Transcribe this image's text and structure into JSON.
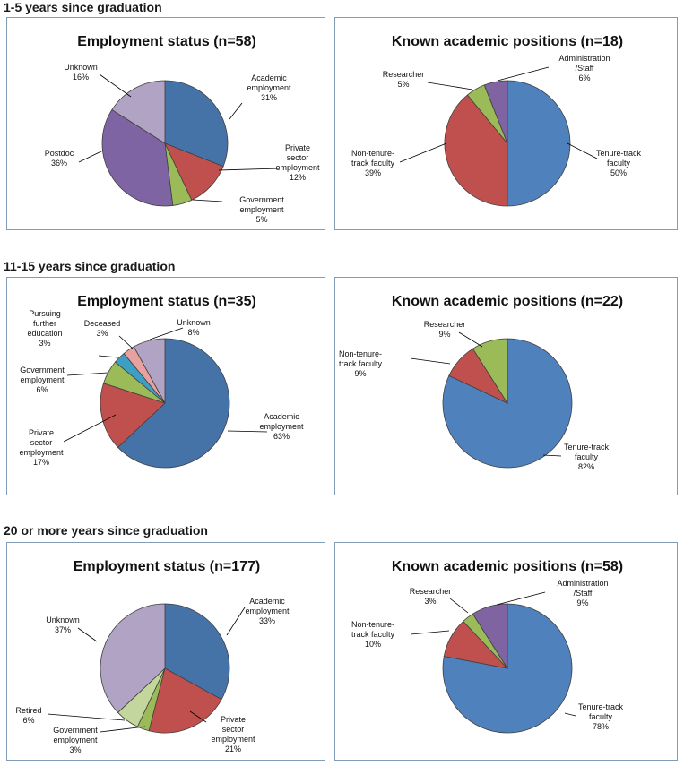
{
  "sections": [
    {
      "title": "1-5 years since graduation"
    },
    {
      "title": "11-15 years since graduation"
    },
    {
      "title": "20 or more years since graduation"
    }
  ],
  "colors": {
    "academic": "#4572a7",
    "private": "#c0504d",
    "government": "#9bbb59",
    "postdoc": "#7e64a2",
    "unknown": "#b0a3c4",
    "further_ed": "#3f9fc3",
    "deceased": "#e8a1a0",
    "retired": "#c3d69b",
    "tenure": "#4f81bd",
    "nontenure": "#c0504d",
    "researcher": "#9bbb59",
    "admin": "#8064a2",
    "panel_border": "#7f9db9",
    "leader": "#000000"
  },
  "chart_data": [
    {
      "type": "pie",
      "title": "Employment status (n=58)",
      "slices": [
        {
          "lines": [
            "Academic",
            "employment",
            "31%"
          ],
          "value": 31,
          "color": "#4572a7"
        },
        {
          "lines": [
            "Private",
            "sector",
            "employment",
            "12%"
          ],
          "value": 12,
          "color": "#c0504d"
        },
        {
          "lines": [
            "Government",
            "employment",
            "5%"
          ],
          "value": 5,
          "color": "#9bbb59"
        },
        {
          "lines": [
            "Postdoc",
            "36%"
          ],
          "value": 36,
          "color": "#7e64a2"
        },
        {
          "lines": [
            "Unknown",
            "16%"
          ],
          "value": 16,
          "color": "#b0a3c4"
        }
      ]
    },
    {
      "type": "pie",
      "title": "Known academic positions (n=18)",
      "slices": [
        {
          "lines": [
            "Tenure-track",
            "faculty",
            "50%"
          ],
          "value": 50,
          "color": "#4f81bd"
        },
        {
          "lines": [
            "Non-tenure-",
            "track faculty",
            "39%"
          ],
          "value": 39,
          "color": "#c0504d"
        },
        {
          "lines": [
            "Researcher",
            "5%"
          ],
          "value": 5,
          "color": "#9bbb59"
        },
        {
          "lines": [
            "Administration",
            "/Staff",
            "6%"
          ],
          "value": 6,
          "color": "#8064a2"
        }
      ]
    },
    {
      "type": "pie",
      "title": "Employment status (n=35)",
      "slices": [
        {
          "lines": [
            "Academic",
            "employment",
            "63%"
          ],
          "value": 63,
          "color": "#4572a7"
        },
        {
          "lines": [
            "Private",
            "sector",
            "employment",
            "17%"
          ],
          "value": 17,
          "color": "#c0504d"
        },
        {
          "lines": [
            "Government",
            "employment",
            "6%"
          ],
          "value": 6,
          "color": "#9bbb59"
        },
        {
          "lines": [
            "Pursuing",
            "further",
            "education",
            "3%"
          ],
          "value": 3,
          "color": "#3f9fc3"
        },
        {
          "lines": [
            "Deceased",
            "3%"
          ],
          "value": 3,
          "color": "#e8a1a0"
        },
        {
          "lines": [
            "Unknown",
            "8%"
          ],
          "value": 8,
          "color": "#b0a3c4"
        }
      ]
    },
    {
      "type": "pie",
      "title": "Known academic positions (n=22)",
      "slices": [
        {
          "lines": [
            "Tenure-track",
            "faculty",
            "82%"
          ],
          "value": 82,
          "color": "#4f81bd"
        },
        {
          "lines": [
            "Non-tenure-",
            "track faculty",
            "9%"
          ],
          "value": 9,
          "color": "#c0504d"
        },
        {
          "lines": [
            "Researcher",
            "9%"
          ],
          "value": 9,
          "color": "#9bbb59"
        }
      ]
    },
    {
      "type": "pie",
      "title": "Employment status (n=177)",
      "slices": [
        {
          "lines": [
            "Academic",
            "employment",
            "33%"
          ],
          "value": 33,
          "color": "#4572a7"
        },
        {
          "lines": [
            "Private",
            "sector",
            "employment",
            "21%"
          ],
          "value": 21,
          "color": "#c0504d"
        },
        {
          "lines": [
            "Government",
            "employment",
            "3%"
          ],
          "value": 3,
          "color": "#9bbb59"
        },
        {
          "lines": [
            "Retired",
            "6%"
          ],
          "value": 6,
          "color": "#c3d69b"
        },
        {
          "lines": [
            "Unknown",
            "37%"
          ],
          "value": 37,
          "color": "#b0a3c4"
        }
      ]
    },
    {
      "type": "pie",
      "title": "Known academic positions (n=58)",
      "slices": [
        {
          "lines": [
            "Tenure-track",
            "faculty",
            "78%"
          ],
          "value": 78,
          "color": "#4f81bd"
        },
        {
          "lines": [
            "Non-tenure-",
            "track faculty",
            "10%"
          ],
          "value": 10,
          "color": "#c0504d"
        },
        {
          "lines": [
            "Researcher",
            "3%"
          ],
          "value": 3,
          "color": "#9bbb59"
        },
        {
          "lines": [
            "Administration",
            "/Staff",
            "9%"
          ],
          "value": 9,
          "color": "#8064a2"
        }
      ]
    }
  ]
}
